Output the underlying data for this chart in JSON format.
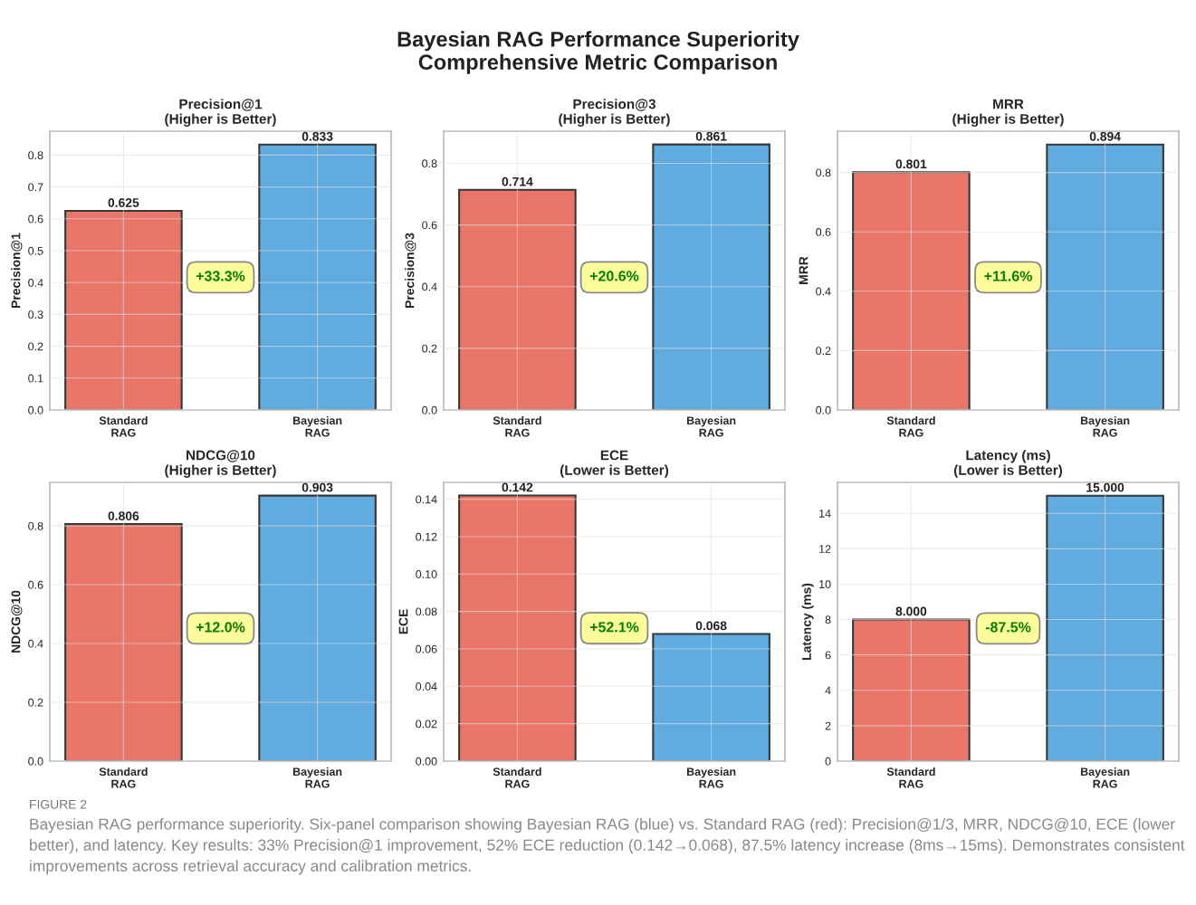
{
  "chart_data": [
    {
      "type": "other",
      "title": "Bayesian RAG Performance Superiority\nComprehensive Metric Comparison",
      "annotations": [
        "FIGURE 2",
        "Bayesian RAG performance superiority. Six-panel comparison showing Bayesian RAG (blue) vs. Standard RAG (red): Precision@1/3, MRR, NDCG@10, ECE (lower better), and latency. Key results: 33% Precision@1 improvement, 52% ECE reduction (0.142→0.068), 87.5% latency increase (8ms→15ms). Demonstrates consistent improvements across retrieval accuracy and calibration metrics."
      ]
    },
    {
      "type": "bar",
      "title": "Precision@1\n(Higher is Better)",
      "ylabel": "Precision@1",
      "categories": [
        "Standard\nRAG",
        "Bayesian\nRAG"
      ],
      "values": [
        0.625,
        0.833
      ],
      "colors": [
        "#e8685a",
        "#4fa3dc"
      ],
      "data_labels": true,
      "ylim": [
        0,
        0.875
      ],
      "yticks": [
        {
          "value": 0,
          "label": "0.0"
        },
        0.1,
        0.2,
        0.3,
        0.4,
        0.5,
        0.6,
        0.7,
        0.8
      ],
      "grid": true,
      "legend": false,
      "annotations": [
        "+33.3%"
      ]
    },
    {
      "type": "bar",
      "title": "Precision@3\n(Higher is Better)",
      "ylabel": "Precision@3",
      "categories": [
        "Standard\nRAG",
        "Bayesian\nRAG"
      ],
      "values": [
        0.714,
        0.861
      ],
      "colors": [
        "#e8685a",
        "#4fa3dc"
      ],
      "data_labels": true,
      "ylim": [
        0,
        0.904
      ],
      "yticks": [
        {
          "value": 0,
          "label": "0.0"
        },
        0.2,
        0.4,
        0.6,
        0.8
      ],
      "grid": true,
      "legend": false,
      "annotations": [
        "+20.6%"
      ]
    },
    {
      "type": "bar",
      "title": "MRR\n(Higher is Better)",
      "ylabel": "MRR",
      "categories": [
        "Standard\nRAG",
        "Bayesian\nRAG"
      ],
      "values": [
        0.801,
        0.894
      ],
      "colors": [
        "#e8685a",
        "#4fa3dc"
      ],
      "data_labels": true,
      "ylim": [
        0,
        0.939
      ],
      "yticks": [
        {
          "value": 0,
          "label": "0.0"
        },
        0.2,
        0.4,
        0.6,
        0.8
      ],
      "grid": true,
      "legend": false,
      "annotations": [
        "+11.6%"
      ]
    },
    {
      "type": "bar",
      "title": "NDCG@10\n(Higher is Better)",
      "ylabel": "NDCG@10",
      "categories": [
        "Standard\nRAG",
        "Bayesian\nRAG"
      ],
      "values": [
        0.806,
        0.903
      ],
      "colors": [
        "#e8685a",
        "#4fa3dc"
      ],
      "data_labels": true,
      "ylim": [
        0,
        0.948
      ],
      "yticks": [
        {
          "value": 0,
          "label": "0.0"
        },
        0.2,
        0.4,
        0.6,
        0.8
      ],
      "grid": true,
      "legend": false,
      "annotations": [
        "+12.0%"
      ]
    },
    {
      "type": "bar",
      "title": "ECE\n(Lower is Better)",
      "ylabel": "ECE",
      "categories": [
        "Standard\nRAG",
        "Bayesian\nRAG"
      ],
      "values": [
        0.142,
        0.068
      ],
      "colors": [
        "#e8685a",
        "#4fa3dc"
      ],
      "data_labels": true,
      "ylim": [
        0,
        0.149
      ],
      "yticks": [
        {
          "value": 0,
          "label": "0.00"
        },
        {
          "value": 0.02,
          "label": "0.02"
        },
        {
          "value": 0.04,
          "label": "0.04"
        },
        {
          "value": 0.06,
          "label": "0.06"
        },
        {
          "value": 0.08,
          "label": "0.08"
        },
        {
          "value": 0.1,
          "label": "0.10"
        },
        {
          "value": 0.12,
          "label": "0.12"
        },
        {
          "value": 0.14,
          "label": "0.14"
        }
      ],
      "grid": true,
      "legend": false,
      "annotations": [
        "+52.1%"
      ]
    },
    {
      "type": "bar",
      "title": "Latency (ms)\n(Lower is Better)",
      "ylabel": "Latency (ms)",
      "categories": [
        "Standard\nRAG",
        "Bayesian\nRAG"
      ],
      "values": [
        8,
        15
      ],
      "value_labels": [
        "8.000",
        "15.000"
      ],
      "colors": [
        "#e8685a",
        "#4fa3dc"
      ],
      "ylim": [
        0,
        15.75
      ],
      "yticks": [
        0,
        2,
        4,
        6,
        8,
        10,
        12,
        14
      ],
      "grid": true,
      "legend": false,
      "annotations": [
        "-87.5%"
      ]
    }
  ]
}
